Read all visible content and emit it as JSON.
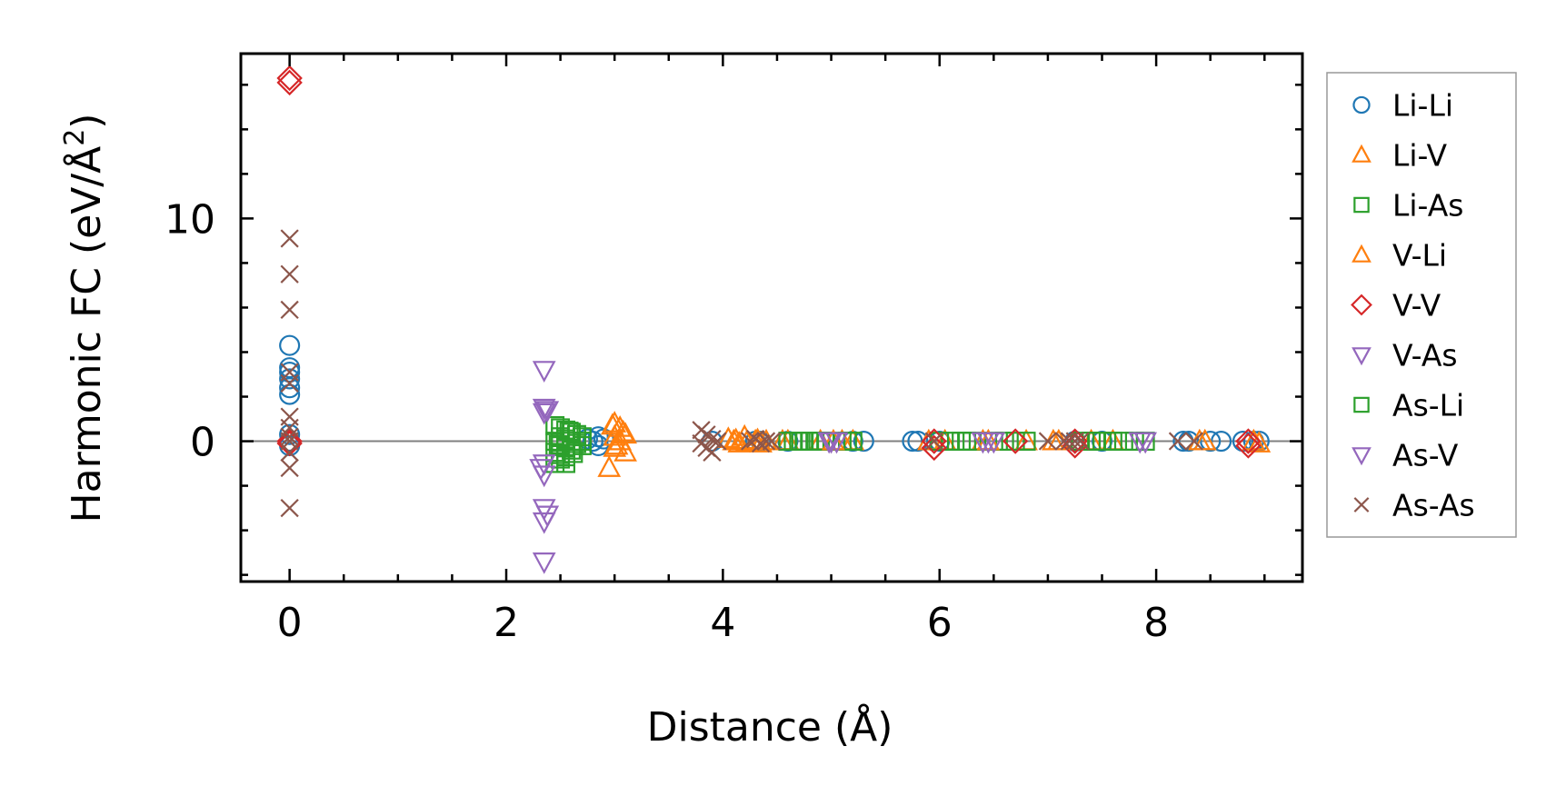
{
  "chart_data": {
    "type": "scatter",
    "title": "",
    "xlabel": "Distance (Å)",
    "ylabel": "Harmonic FC (eV/Å²)",
    "ylabel_parts": {
      "main": "Harmonic FC (eV/Å",
      "sup": "2",
      "end": ")"
    },
    "xlim": [
      -0.45,
      9.35
    ],
    "ylim": [
      -6.3,
      17.4
    ],
    "xticks": [
      0,
      2,
      4,
      6,
      8
    ],
    "xtick_labels": [
      "0",
      "2",
      "4",
      "6",
      "8"
    ],
    "yticks": [
      0,
      10
    ],
    "ytick_labels": [
      "0",
      "10"
    ],
    "x_minor_step": 0.5,
    "y_minor_step": 2,
    "zero_line": true,
    "grid": false,
    "legend_position": "outside-right",
    "series": [
      {
        "name": "Li-Li",
        "marker": "circle",
        "color": "#1f77b4",
        "points": [
          [
            0,
            4.3
          ],
          [
            0,
            3.3
          ],
          [
            0,
            3.1
          ],
          [
            0,
            2.8
          ],
          [
            0,
            2.4
          ],
          [
            0,
            2.1
          ],
          [
            0,
            0.3
          ],
          [
            0,
            0
          ],
          [
            0,
            -0.2
          ],
          [
            2.75,
            0.1
          ],
          [
            2.8,
            0
          ],
          [
            2.85,
            0.2
          ],
          [
            2.85,
            -0.2
          ],
          [
            2.9,
            0.1
          ],
          [
            3.9,
            0
          ],
          [
            4.3,
            0
          ],
          [
            4.35,
            0
          ],
          [
            4.6,
            0
          ],
          [
            5.2,
            0
          ],
          [
            5.3,
            0
          ],
          [
            5.75,
            0
          ],
          [
            5.8,
            0
          ],
          [
            6.0,
            0
          ],
          [
            7.25,
            0
          ],
          [
            7.5,
            0
          ],
          [
            8.25,
            0
          ],
          [
            8.3,
            0
          ],
          [
            8.5,
            0
          ],
          [
            8.6,
            0
          ],
          [
            8.8,
            0
          ],
          [
            8.9,
            0
          ],
          [
            8.95,
            0
          ]
        ]
      },
      {
        "name": "Li-V",
        "marker": "triangle-up",
        "color": "#ff7f0e",
        "points": [
          [
            3.0,
            0.8
          ],
          [
            3.05,
            0.6
          ],
          [
            3.1,
            0.3
          ],
          [
            3.0,
            0.2
          ],
          [
            3.05,
            0
          ],
          [
            3.0,
            -0.3
          ],
          [
            3.1,
            -0.5
          ],
          [
            2.95,
            -1.2
          ],
          [
            4.05,
            0.1
          ],
          [
            4.1,
            0
          ],
          [
            4.15,
            -0.1
          ],
          [
            4.2,
            0.2
          ],
          [
            4.3,
            0
          ],
          [
            4.35,
            -0.1
          ],
          [
            4.4,
            0
          ],
          [
            4.55,
            0
          ],
          [
            4.6,
            0
          ],
          [
            4.9,
            0
          ],
          [
            5.1,
            0
          ],
          [
            5.2,
            0
          ],
          [
            5.9,
            0
          ],
          [
            6.05,
            0
          ],
          [
            6.4,
            0
          ],
          [
            6.8,
            0
          ],
          [
            7.05,
            0
          ],
          [
            7.1,
            0
          ],
          [
            7.4,
            0
          ],
          [
            7.6,
            0
          ],
          [
            8.4,
            0
          ],
          [
            8.9,
            0
          ],
          [
            8.95,
            -0.1
          ]
        ]
      },
      {
        "name": "Li-As",
        "marker": "square",
        "color": "#2ca02c",
        "points": [
          [
            2.45,
            0.7
          ],
          [
            2.5,
            0.6
          ],
          [
            2.55,
            0.5
          ],
          [
            2.6,
            0.4
          ],
          [
            2.65,
            0.3
          ],
          [
            2.5,
            0.2
          ],
          [
            2.55,
            0.1
          ],
          [
            2.45,
            0
          ],
          [
            2.6,
            0
          ],
          [
            2.65,
            -0.1
          ],
          [
            2.5,
            -0.2
          ],
          [
            2.55,
            -0.3
          ],
          [
            2.6,
            -0.4
          ],
          [
            2.45,
            -0.5
          ],
          [
            2.5,
            -0.6
          ],
          [
            2.55,
            -0.7
          ],
          [
            2.5,
            -0.8
          ],
          [
            2.45,
            -1.0
          ],
          [
            2.55,
            -1.0
          ],
          [
            2.7,
            0
          ],
          [
            2.7,
            0.2
          ],
          [
            2.7,
            -0.2
          ],
          [
            4.6,
            0
          ],
          [
            4.65,
            0
          ],
          [
            4.7,
            0
          ],
          [
            4.75,
            0
          ],
          [
            4.8,
            0
          ],
          [
            4.85,
            0
          ],
          [
            4.9,
            0
          ],
          [
            4.95,
            0
          ],
          [
            5.1,
            0
          ],
          [
            5.15,
            0
          ],
          [
            5.2,
            0
          ],
          [
            6.0,
            0
          ],
          [
            6.1,
            0
          ],
          [
            6.2,
            0
          ],
          [
            6.3,
            0
          ],
          [
            6.5,
            0
          ],
          [
            6.6,
            0
          ],
          [
            6.7,
            0
          ],
          [
            6.8,
            0
          ],
          [
            7.3,
            0
          ],
          [
            7.4,
            0
          ],
          [
            7.5,
            0
          ],
          [
            7.6,
            0
          ],
          [
            7.7,
            0
          ],
          [
            7.8,
            0
          ],
          [
            7.9,
            0
          ]
        ]
      },
      {
        "name": "V-Li",
        "marker": "triangle-up",
        "color": "#ff7f0e",
        "points": [
          [
            2.98,
            0.7
          ],
          [
            3.08,
            0.4
          ],
          [
            3.02,
            -0.2
          ],
          [
            4.12,
            0.05
          ],
          [
            4.22,
            -0.05
          ],
          [
            4.32,
            0.05
          ],
          [
            5.02,
            0
          ],
          [
            6.45,
            0
          ],
          [
            8.45,
            0
          ]
        ]
      },
      {
        "name": "V-V",
        "marker": "diamond",
        "color": "#d62728",
        "points": [
          [
            0,
            16.1
          ],
          [
            0,
            16.3
          ],
          [
            0,
            0
          ],
          [
            0,
            -0.1
          ],
          [
            5.95,
            0
          ],
          [
            5.95,
            -0.3
          ],
          [
            6.7,
            0
          ],
          [
            7.25,
            0
          ],
          [
            7.25,
            -0.2
          ],
          [
            8.85,
            0
          ],
          [
            8.85,
            -0.2
          ]
        ]
      },
      {
        "name": "V-As",
        "marker": "triangle-down",
        "color": "#9467bd",
        "points": [
          [
            2.35,
            3.2
          ],
          [
            2.35,
            1.5
          ],
          [
            2.35,
            1.3
          ],
          [
            2.35,
            -1.0
          ],
          [
            2.35,
            -1.5
          ],
          [
            2.35,
            -3.0
          ],
          [
            2.35,
            -3.6
          ],
          [
            2.35,
            -5.4
          ],
          [
            5.0,
            0
          ],
          [
            5.05,
            0
          ],
          [
            6.45,
            0
          ],
          [
            6.5,
            0
          ],
          [
            7.9,
            0
          ]
        ]
      },
      {
        "name": "As-Li",
        "marker": "square",
        "color": "#2ca02c",
        "points": [
          [
            2.58,
            0.45
          ],
          [
            2.62,
            -0.55
          ],
          [
            2.48,
            -0.15
          ],
          [
            4.72,
            0
          ],
          [
            6.25,
            0
          ],
          [
            7.45,
            0
          ]
        ]
      },
      {
        "name": "As-V",
        "marker": "triangle-down",
        "color": "#9467bd",
        "points": [
          [
            2.38,
            1.4
          ],
          [
            2.32,
            -1.2
          ],
          [
            2.38,
            -3.3
          ],
          [
            4.98,
            0
          ],
          [
            6.4,
            0
          ],
          [
            7.85,
            0
          ]
        ]
      },
      {
        "name": "As-As",
        "marker": "x",
        "color": "#8c564b",
        "points": [
          [
            0,
            9.1
          ],
          [
            0,
            7.5
          ],
          [
            0,
            5.9
          ],
          [
            0,
            3.1
          ],
          [
            0,
            2.6
          ],
          [
            0,
            1.1
          ],
          [
            0,
            0.6
          ],
          [
            0,
            0.2
          ],
          [
            0,
            0
          ],
          [
            0,
            -0.5
          ],
          [
            0,
            -1.2
          ],
          [
            0,
            -3.0
          ],
          [
            3.8,
            0.5
          ],
          [
            3.85,
            0.3
          ],
          [
            3.9,
            0.1
          ],
          [
            3.8,
            -0.1
          ],
          [
            3.85,
            -0.3
          ],
          [
            3.9,
            -0.5
          ],
          [
            3.95,
            0
          ],
          [
            4.25,
            0
          ],
          [
            4.3,
            0.1
          ],
          [
            4.35,
            -0.1
          ],
          [
            4.4,
            0
          ],
          [
            4.45,
            0
          ],
          [
            5.95,
            0
          ],
          [
            7.0,
            0
          ],
          [
            7.15,
            0
          ],
          [
            7.2,
            0
          ],
          [
            7.25,
            0
          ],
          [
            7.3,
            0
          ],
          [
            8.2,
            0
          ],
          [
            8.35,
            0
          ]
        ]
      }
    ]
  }
}
